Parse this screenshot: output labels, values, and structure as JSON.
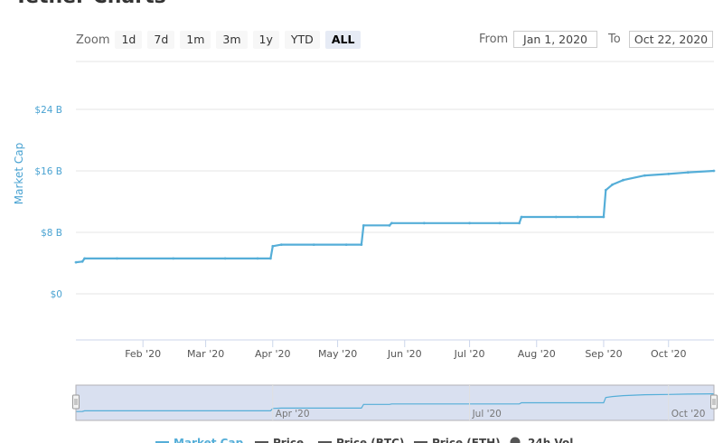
{
  "page": {
    "title": "Tether Charts"
  },
  "zoom": {
    "label": "Zoom",
    "buttons": [
      "1d",
      "7d",
      "1m",
      "3m",
      "1y",
      "YTD",
      "ALL"
    ],
    "active": "ALL"
  },
  "range": {
    "from_label": "From",
    "from_value": "Jan 1, 2020",
    "to_label": "To",
    "to_value": "Oct 22, 2020"
  },
  "colors": {
    "series": "#55aed8",
    "axis_label": "#4aa3d2",
    "navigator_fill": "#ccd6eb",
    "grid": "#e6e6e6"
  },
  "navigator": {
    "ticks": [
      "Apr '20",
      "Jul '20",
      "Oct '20"
    ]
  },
  "chart_data": {
    "type": "line",
    "title": "",
    "ylabel": "Market Cap",
    "ylim": [
      -6,
      30
    ],
    "yticks": [
      0,
      8,
      16,
      24
    ],
    "ytick_labels": [
      "$0",
      "$8 B",
      "$16 B",
      "$24 B"
    ],
    "xlim": [
      "2020-01-01",
      "2020-10-22"
    ],
    "xtick_labels": [
      "Feb '20",
      "Mar '20",
      "Apr '20",
      "May '20",
      "Jun '20",
      "Jul '20",
      "Aug '20",
      "Sep '20",
      "Oct '20"
    ],
    "grid": true,
    "series": [
      {
        "name": "Market Cap",
        "x": [
          "2020-01-01",
          "2020-01-04",
          "2020-01-05",
          "2020-01-20",
          "2020-02-15",
          "2020-03-10",
          "2020-03-25",
          "2020-03-31",
          "2020-04-01",
          "2020-04-05",
          "2020-04-20",
          "2020-05-05",
          "2020-05-12",
          "2020-05-13",
          "2020-05-25",
          "2020-05-26",
          "2020-06-10",
          "2020-07-01",
          "2020-07-15",
          "2020-07-24",
          "2020-07-25",
          "2020-08-10",
          "2020-08-20",
          "2020-09-01",
          "2020-09-02",
          "2020-09-05",
          "2020-09-10",
          "2020-09-20",
          "2020-10-01",
          "2020-10-10",
          "2020-10-22"
        ],
        "values": [
          4.1,
          4.2,
          4.6,
          4.6,
          4.6,
          4.6,
          4.6,
          4.6,
          6.2,
          6.4,
          6.4,
          6.4,
          6.4,
          8.9,
          8.9,
          9.2,
          9.2,
          9.2,
          9.2,
          9.2,
          10.0,
          10.0,
          10.0,
          10.0,
          13.5,
          14.2,
          14.8,
          15.4,
          15.6,
          15.8,
          16.0
        ]
      }
    ],
    "legend": [
      "Market Cap",
      "Price",
      "Price (BTC)",
      "Price (ETH)",
      "24h Vol"
    ],
    "legend_position": "bottom"
  }
}
